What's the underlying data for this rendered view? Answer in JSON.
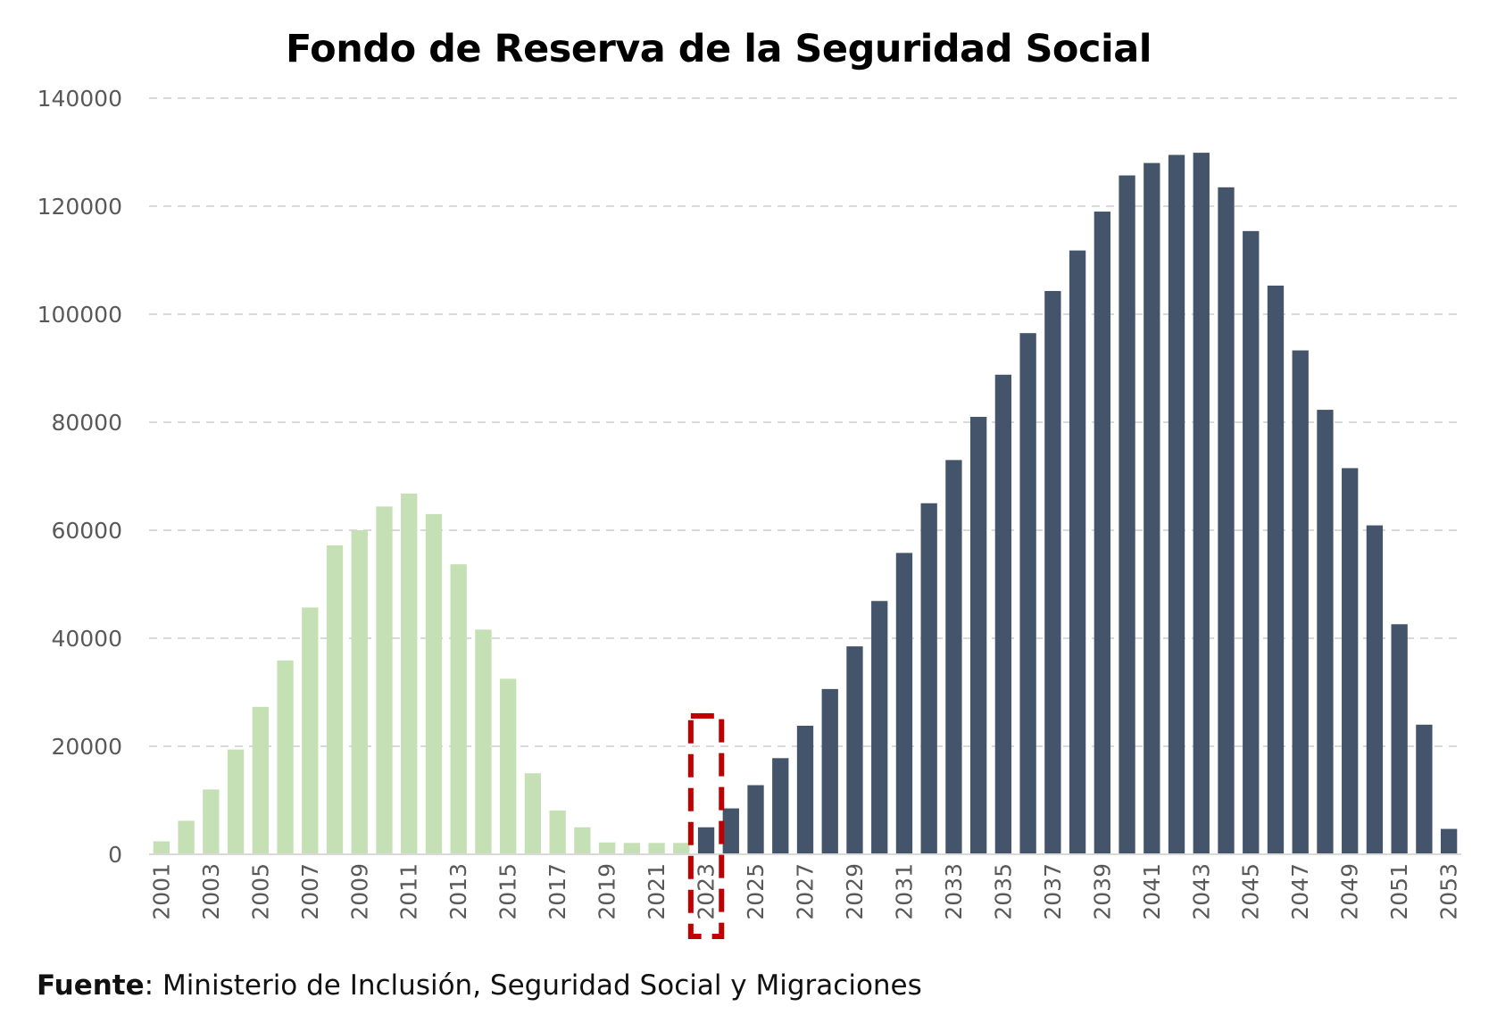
{
  "chart_data": {
    "type": "bar",
    "title": "Fondo de Reserva de la Seguridad Social",
    "xlabel": "",
    "ylabel": "",
    "ylim": [
      0,
      140000
    ],
    "yticks": [
      0,
      20000,
      40000,
      60000,
      80000,
      100000,
      120000,
      140000
    ],
    "grid": "horizontal dashed",
    "legend": "none",
    "highlight_category": "2023",
    "colors": {
      "historical": "#c5e0b4",
      "projected": "#44546a",
      "highlight_box": "#c00000",
      "grid": "#d9d9d9",
      "tick_text": "#595959"
    },
    "categories": [
      "2001",
      "2002",
      "2003",
      "2004",
      "2005",
      "2006",
      "2007",
      "2008",
      "2009",
      "2010",
      "2011",
      "2012",
      "2013",
      "2014",
      "2015",
      "2016",
      "2017",
      "2018",
      "2019",
      "2020",
      "2021",
      "2022",
      "2023",
      "2024",
      "2025",
      "2026",
      "2027",
      "2028",
      "2029",
      "2030",
      "2031",
      "2032",
      "2033",
      "2034",
      "2035",
      "2036",
      "2037",
      "2038",
      "2039",
      "2040",
      "2041",
      "2042",
      "2043",
      "2044",
      "2045",
      "2046",
      "2047",
      "2048",
      "2049",
      "2050",
      "2051",
      "2052",
      "2053"
    ],
    "values": [
      2400,
      6200,
      12000,
      19400,
      27300,
      35900,
      45700,
      57200,
      60000,
      64400,
      66800,
      63000,
      53700,
      41600,
      32500,
      15000,
      8100,
      5000,
      2200,
      2100,
      2100,
      2100,
      5000,
      8500,
      12800,
      17800,
      23800,
      30600,
      38500,
      46900,
      55800,
      65000,
      73000,
      81000,
      88800,
      96500,
      104300,
      111800,
      119000,
      125700,
      128000,
      129500,
      129900,
      123500,
      115400,
      105300,
      93300,
      82300,
      71500,
      60900,
      42600,
      24000,
      4700
    ],
    "series_color_keys": [
      "historical",
      "historical",
      "historical",
      "historical",
      "historical",
      "historical",
      "historical",
      "historical",
      "historical",
      "historical",
      "historical",
      "historical",
      "historical",
      "historical",
      "historical",
      "historical",
      "historical",
      "historical",
      "historical",
      "historical",
      "historical",
      "historical",
      "projected",
      "projected",
      "projected",
      "projected",
      "projected",
      "projected",
      "projected",
      "projected",
      "projected",
      "projected",
      "projected",
      "projected",
      "projected",
      "projected",
      "projected",
      "projected",
      "projected",
      "projected",
      "projected",
      "projected",
      "projected",
      "projected",
      "projected",
      "projected",
      "projected",
      "projected",
      "projected",
      "projected",
      "projected",
      "projected",
      "projected"
    ],
    "x_tick_labels": [
      "2001",
      "2003",
      "2005",
      "2007",
      "2009",
      "2011",
      "2013",
      "2015",
      "2017",
      "2019",
      "2021",
      "2023",
      "2025",
      "2027",
      "2029",
      "2031",
      "2033",
      "2035",
      "2037",
      "2039",
      "2041",
      "2043",
      "2045",
      "2047",
      "2049",
      "2051",
      "2053"
    ]
  },
  "source": {
    "label": "Fuente",
    "separator": ":",
    "text": " Ministerio de Inclusión, Seguridad Social y Migraciones"
  }
}
